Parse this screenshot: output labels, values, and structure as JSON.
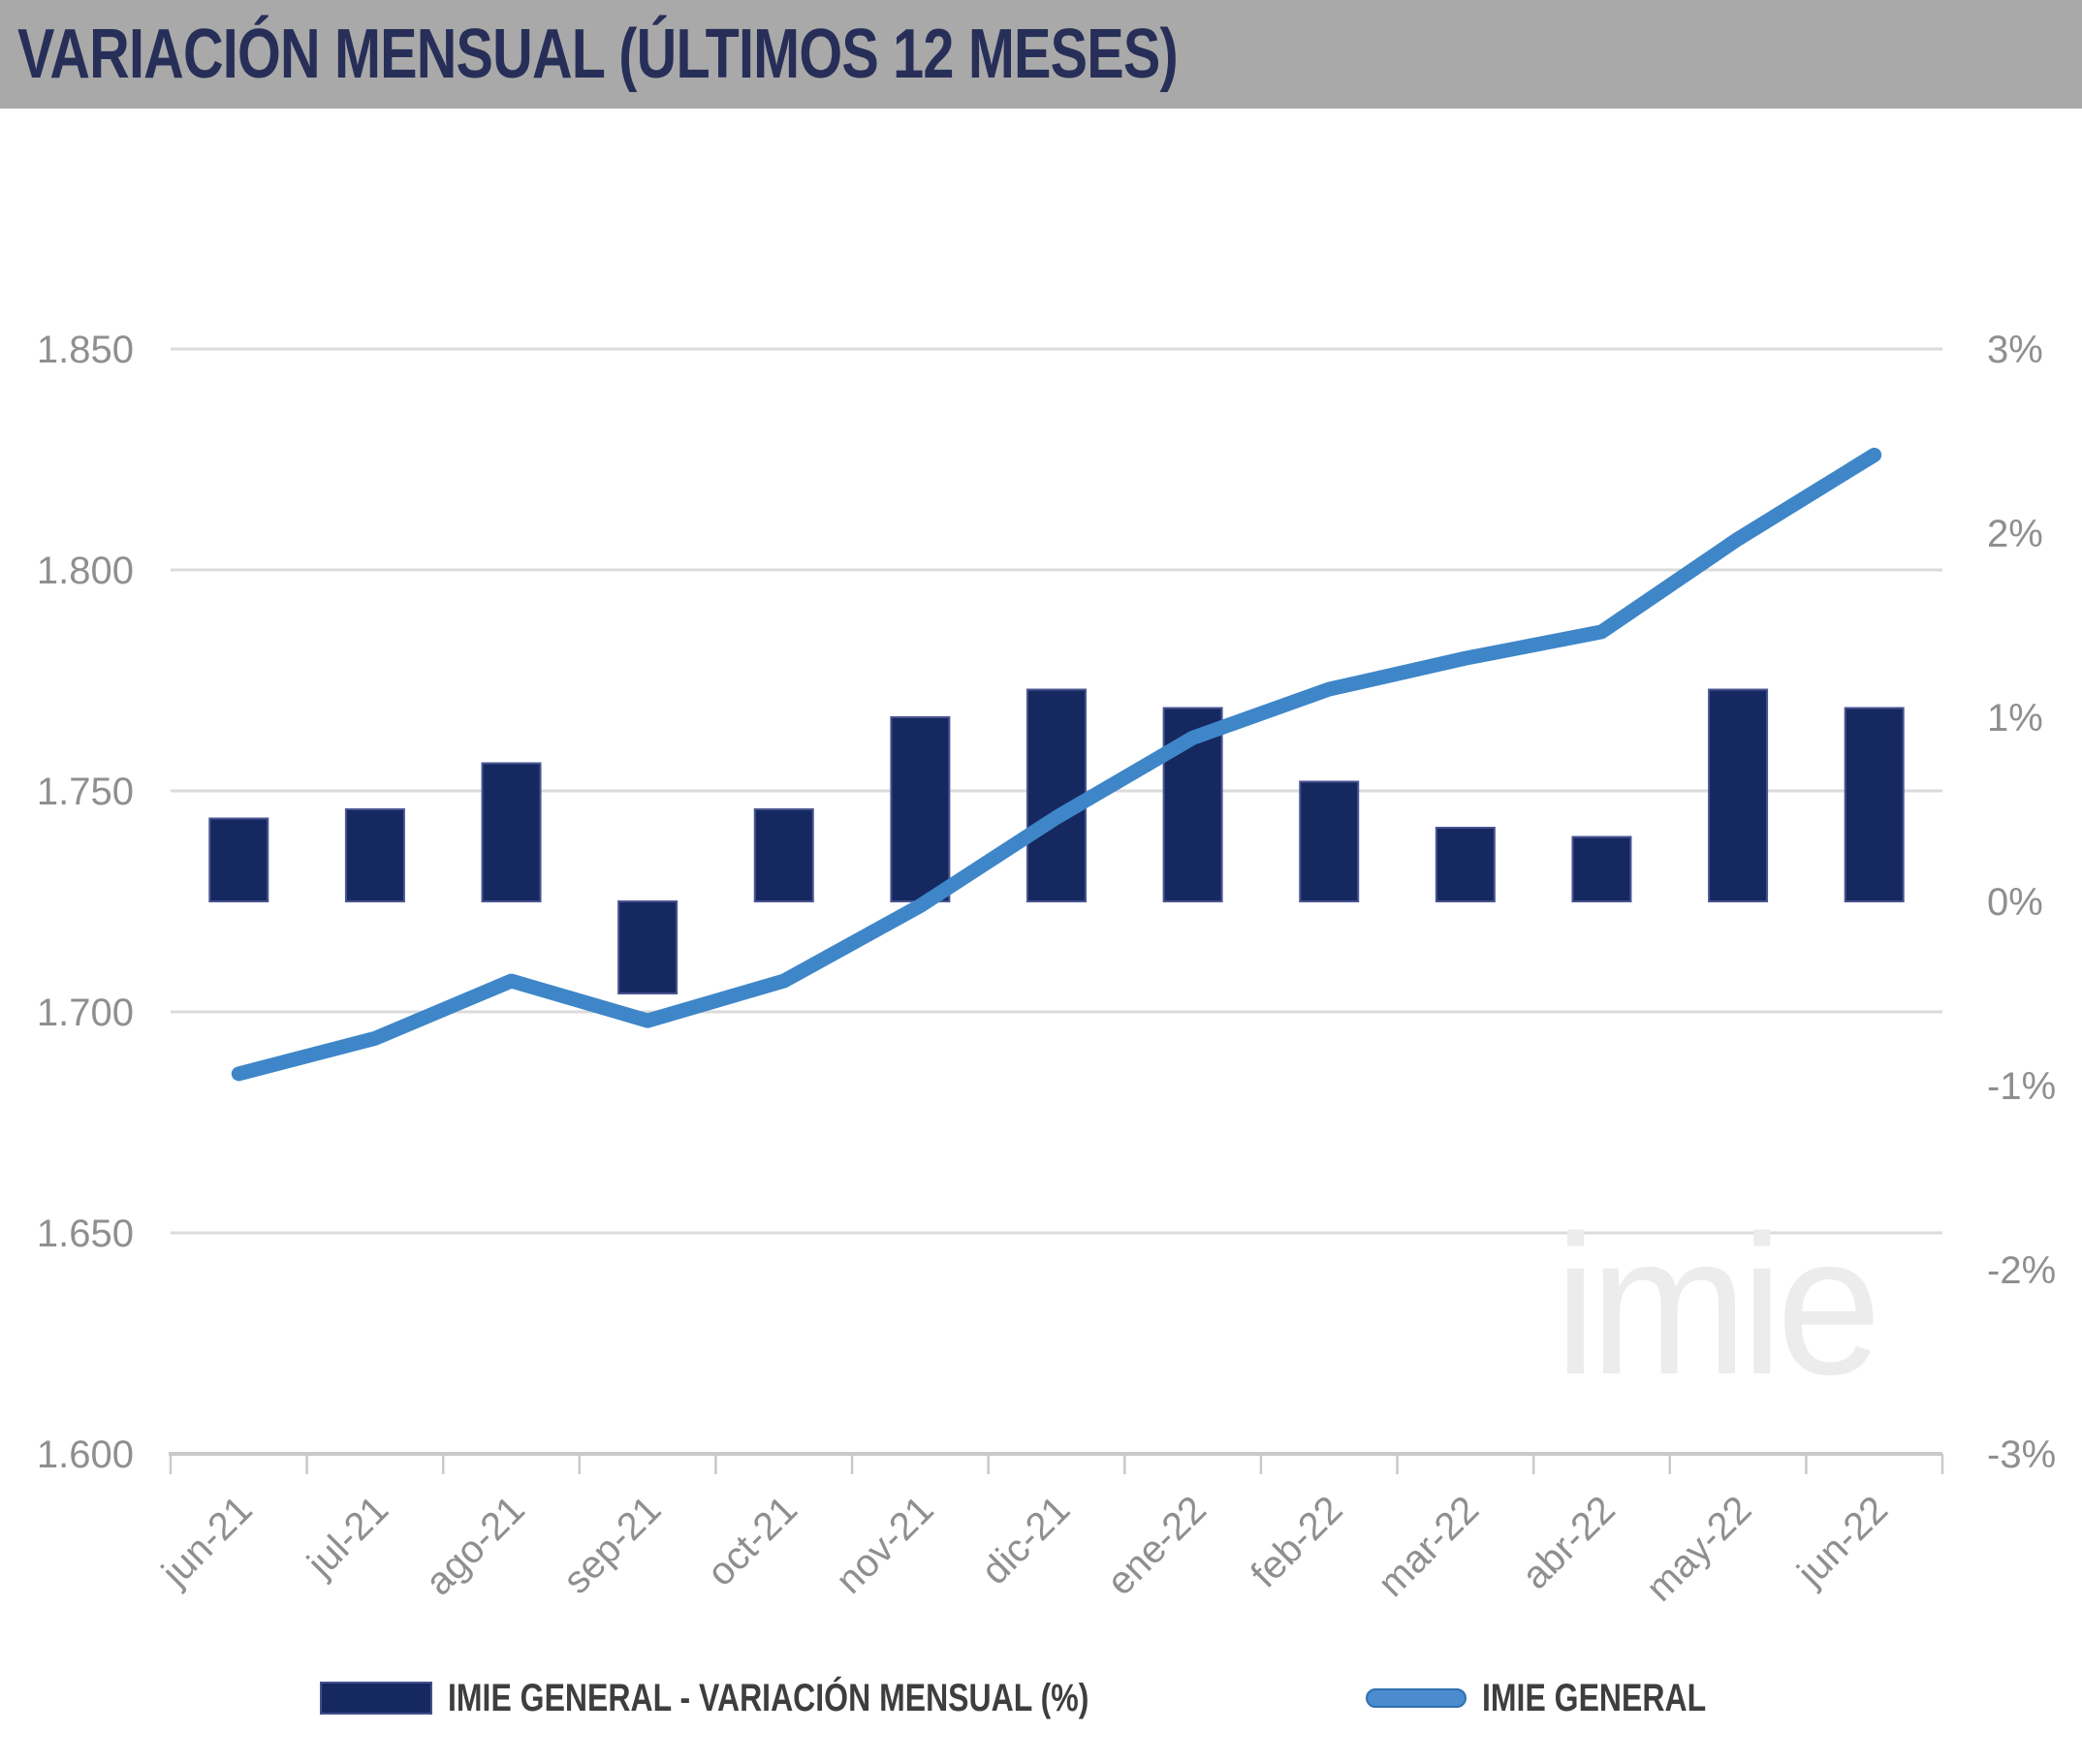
{
  "header": {
    "title": "VARIACIÓN MENSUAL (ÚLTIMOS 12 MESES)"
  },
  "watermark": "imie",
  "legend": {
    "items": [
      {
        "swatch": "bar-swatch",
        "label": "IMIE GENERAL - VARIACIÓN MENSUAL (%)"
      },
      {
        "swatch": "line-swatch",
        "label": "IMIE GENERAL"
      }
    ]
  },
  "colors": {
    "header_bg": "#a9a9a9",
    "title_text": "#272f58",
    "bar_fill": "#152860",
    "bar_border": "#4a5490",
    "line": "#3e86c8",
    "gridline": "#dbdbdb",
    "axis_line": "#c9c9c9",
    "axis_tick": "#c9c9c9",
    "axis_label": "#8f8f8f",
    "legend_text": "#3e3e3e",
    "watermark": "#ececec"
  },
  "chart_data": {
    "type": "combo",
    "title": "VARIACIÓN MENSUAL (ÚLTIMOS 12 MESES)",
    "categories": [
      "jun-21",
      "jul-21",
      "ago-21",
      "sep-21",
      "oct-21",
      "nov-21",
      "dic-21",
      "ene-22",
      "feb-22",
      "mar-22",
      "abr-22",
      "may-22",
      "jun-22"
    ],
    "series": [
      {
        "name": "IMIE GENERAL - VARIACIÓN MENSUAL (%)",
        "type": "bar",
        "axis": "right",
        "unit": "%",
        "values": [
          0.45,
          0.5,
          0.75,
          -0.5,
          0.5,
          1.0,
          1.15,
          1.05,
          0.65,
          0.4,
          0.35,
          1.15,
          1.05
        ]
      },
      {
        "name": "IMIE GENERAL",
        "type": "line",
        "axis": "left",
        "unit": "index points",
        "values": [
          1686,
          1694,
          1707,
          1698,
          1707,
          1724,
          1744,
          1762,
          1773,
          1780,
          1786,
          1807,
          1826
        ]
      }
    ],
    "left_axis": {
      "min": 1600,
      "max": 1850,
      "step": 50,
      "tick_labels": [
        "1.850",
        "1.800",
        "1.750",
        "1.700",
        "1.650",
        "1.600"
      ]
    },
    "right_axis": {
      "min": -3,
      "max": 3,
      "step": 1,
      "tick_labels": [
        "3%",
        "2%",
        "1%",
        "0%",
        "-1%",
        "-2%",
        "-3%"
      ]
    },
    "grid": {
      "horizontal": true,
      "vertical": false
    },
    "legend_position": "bottom"
  }
}
